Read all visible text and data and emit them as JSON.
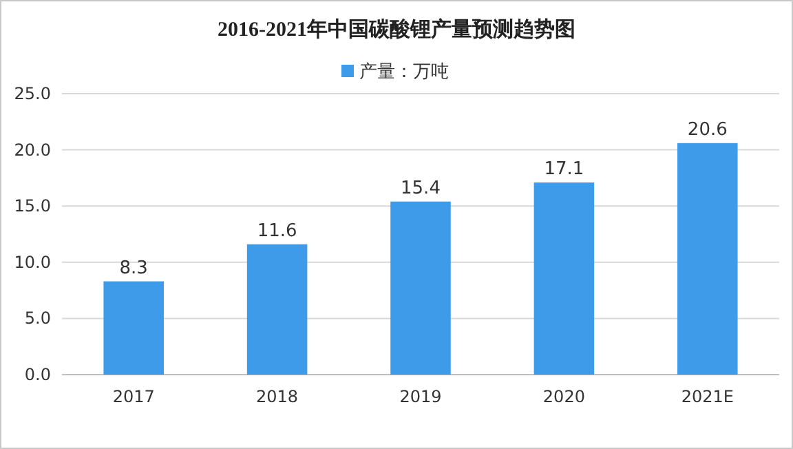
{
  "chart_data": {
    "type": "bar",
    "title": "2016-2021年中国碳酸锂产量预测趋势图",
    "categories": [
      "2017",
      "2018",
      "2019",
      "2020",
      "2021E"
    ],
    "series": [
      {
        "name": "产量：万吨",
        "color": "#3d9be9",
        "values": [
          8.3,
          11.6,
          15.4,
          17.1,
          20.6
        ]
      }
    ],
    "ylim": [
      0,
      25
    ],
    "yticks": [
      {
        "value": 0,
        "label": "0.0"
      },
      {
        "value": 5,
        "label": "5.0"
      },
      {
        "value": 10,
        "label": "10.0"
      },
      {
        "value": 15,
        "label": "15.0"
      },
      {
        "value": 20,
        "label": "20.0"
      },
      {
        "value": 25,
        "label": "25.0"
      }
    ],
    "grid": "y",
    "legend": "top",
    "data_labels": true
  }
}
